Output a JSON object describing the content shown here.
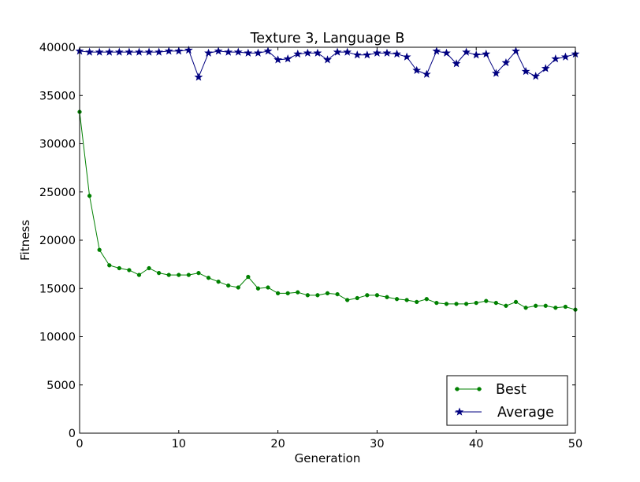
{
  "chart_data": {
    "type": "line",
    "title": "Texture 3, Language B",
    "xlabel": "Generation",
    "ylabel": "Fitness",
    "xlim": [
      0,
      50
    ],
    "ylim": [
      0,
      40000
    ],
    "xticks": [
      0,
      10,
      20,
      30,
      40,
      50
    ],
    "yticks": [
      0,
      5000,
      10000,
      15000,
      20000,
      25000,
      30000,
      35000,
      40000
    ],
    "grid": false,
    "legend_position": "lower-right",
    "x": [
      0,
      1,
      2,
      3,
      4,
      5,
      6,
      7,
      8,
      9,
      10,
      11,
      12,
      13,
      14,
      15,
      16,
      17,
      18,
      19,
      20,
      21,
      22,
      23,
      24,
      25,
      26,
      27,
      28,
      29,
      30,
      31,
      32,
      33,
      34,
      35,
      36,
      37,
      38,
      39,
      40,
      41,
      42,
      43,
      44,
      45,
      46,
      47,
      48,
      49,
      50
    ],
    "series": [
      {
        "name": "Best",
        "color": "#008000",
        "marker": "dot",
        "values": [
          33300,
          24600,
          19000,
          17400,
          17100,
          16900,
          16400,
          17100,
          16600,
          16400,
          16400,
          16400,
          16600,
          16100,
          15700,
          15300,
          15100,
          16200,
          15000,
          15100,
          14500,
          14500,
          14600,
          14300,
          14300,
          14500,
          14400,
          13800,
          14000,
          14300,
          14300,
          14100,
          13900,
          13800,
          13600,
          13900,
          13500,
          13400,
          13400,
          13400,
          13500,
          13700,
          13500,
          13200,
          13600,
          13000,
          13200,
          13200,
          13000,
          13100,
          12800
        ]
      },
      {
        "name": "Average",
        "color": "#000080",
        "marker": "star",
        "values": [
          39600,
          39500,
          39500,
          39500,
          39500,
          39500,
          39500,
          39500,
          39500,
          39600,
          39600,
          39700,
          36900,
          39400,
          39600,
          39500,
          39500,
          39400,
          39400,
          39600,
          38700,
          38800,
          39300,
          39400,
          39400,
          38700,
          39500,
          39500,
          39200,
          39200,
          39400,
          39400,
          39300,
          39000,
          37600,
          37200,
          39600,
          39400,
          38300,
          39500,
          39200,
          39300,
          37300,
          38400,
          39600,
          37500,
          37000,
          37800,
          38800,
          39000,
          39300
        ]
      }
    ]
  }
}
